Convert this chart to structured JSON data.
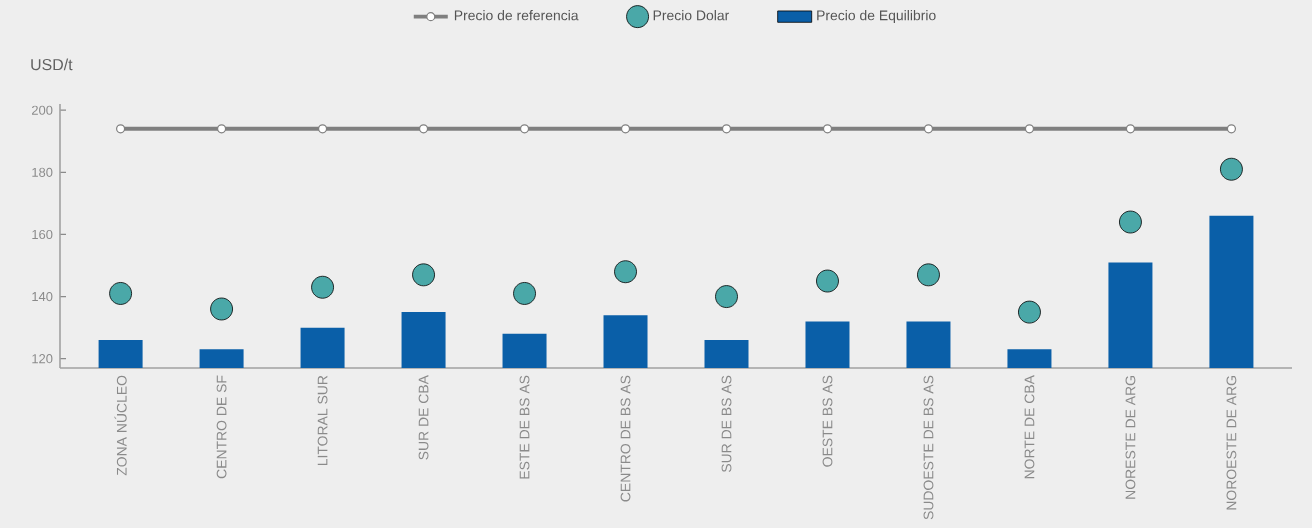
{
  "chart_data": {
    "type": "bar",
    "ylabel": "USD/t",
    "categories": [
      "ZONA NÚCLEO",
      "CENTRO DE SF",
      "LITORAL SUR",
      "SUR DE CBA",
      "ESTE DE BS AS",
      "CENTRO DE BS AS",
      "SUR DE BS AS",
      "OESTE BS AS",
      "SUDOESTE DE BS AS",
      "NORTE DE CBA",
      "NORESTE DE ARG",
      "NOROESTE DE ARG"
    ],
    "series": [
      {
        "name": "Precio de referencia",
        "type": "line",
        "color": "#7f7f7f",
        "marker": "circle",
        "line_style": "solid",
        "values": [
          194,
          194,
          194,
          194,
          194,
          194,
          194,
          194,
          194,
          194,
          194,
          194
        ]
      },
      {
        "name": "Precio Dolar",
        "type": "scatter",
        "color": "#4aa8a8",
        "marker": "circle",
        "values": [
          141,
          136,
          143,
          147,
          141,
          148,
          140,
          145,
          147,
          135,
          164,
          181
        ]
      },
      {
        "name": "Precio de Equilibrio",
        "color": "#0a5fa8",
        "values": [
          126,
          123,
          130,
          135,
          128,
          134,
          126,
          132,
          132,
          123,
          151,
          166
        ]
      }
    ],
    "ylim": [
      117,
      202
    ],
    "yticks": [
      120,
      140,
      160,
      180,
      200
    ],
    "grid": false,
    "legend": "top"
  }
}
